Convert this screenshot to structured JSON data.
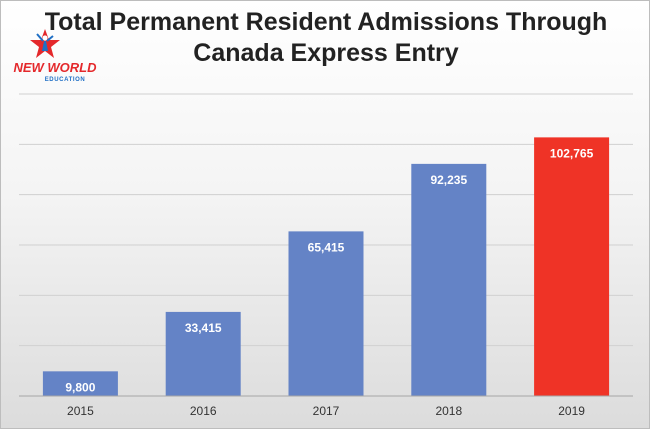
{
  "logo": {
    "icon": "star-figure-logo",
    "line1": "NEW WORLD",
    "line2": "EDUCATION",
    "colors": {
      "red": "#e4282b",
      "blue": "#1f6fc5"
    }
  },
  "chart_data": {
    "type": "bar",
    "title": "Total Permanent Resident Admissions Through Canada Express Entry",
    "title_lines": [
      "Total Permanent Resident Admissions Through",
      "Canada Express Entry"
    ],
    "categories": [
      "2015",
      "2016",
      "2017",
      "2018",
      "2019"
    ],
    "values": [
      9800,
      33415,
      65415,
      92235,
      102765
    ],
    "data_labels": [
      "9,800",
      "33,415",
      "65,415",
      "92,235",
      "102,765"
    ],
    "xlabel": "",
    "ylabel": "",
    "ylim": [
      0,
      120000
    ],
    "y_gridline_step": 20000,
    "grid": true,
    "legend": "none",
    "colors": {
      "default": "#6483c6",
      "highlight": "#ef3326",
      "highlight_category": "2019",
      "grid": "#d0d0d0",
      "axis": "#a6a6a6"
    }
  }
}
